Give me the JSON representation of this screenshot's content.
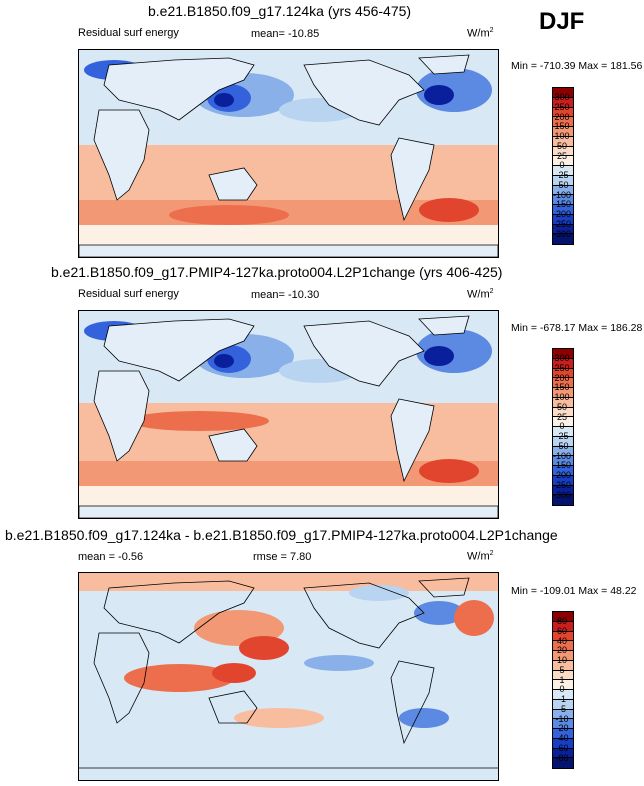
{
  "season": "DJF",
  "panels": [
    {
      "title": "b.e21.B1850.f09_g17.124ka (yrs 456-475)",
      "variable": "Residual surf energy",
      "stat": "mean= -10.85",
      "units_base": "W/m",
      "units_exp": "2",
      "minmax": "Min = -710.39 Max = 181.56",
      "levels": [
        "300",
        "250",
        "200",
        "150",
        "100",
        "50",
        "25",
        "0",
        "-25",
        "-50",
        "-100",
        "-150",
        "-200",
        "-250",
        "-300"
      ],
      "colors": [
        "#8c0000",
        "#c81e1e",
        "#e2452d",
        "#ec6e4c",
        "#f39874",
        "#f7bd9e",
        "#fbdcc6",
        "#fdf1e6",
        "#d8e8f5",
        "#b8d4f0",
        "#89b0e8",
        "#5c8ae2",
        "#3462dc",
        "#183ec6",
        "#0a1f9c",
        "#04146e"
      ]
    },
    {
      "title": "b.e21.B1850.f09_g17.PMIP4-127ka.proto004.L2P1change (yrs 406-425)",
      "variable": "Residual surf energy",
      "stat": "mean= -10.30",
      "units_base": "W/m",
      "units_exp": "2",
      "minmax": "Min = -678.17 Max = 186.28",
      "levels": [
        "300",
        "250",
        "200",
        "150",
        "100",
        "50",
        "25",
        "0",
        "-25",
        "-50",
        "-100",
        "-150",
        "-200",
        "-250",
        "-300"
      ],
      "colors": [
        "#8c0000",
        "#c81e1e",
        "#e2452d",
        "#ec6e4c",
        "#f39874",
        "#f7bd9e",
        "#fbdcc6",
        "#fdf1e6",
        "#d8e8f5",
        "#b8d4f0",
        "#89b0e8",
        "#5c8ae2",
        "#3462dc",
        "#183ec6",
        "#0a1f9c",
        "#04146e"
      ]
    },
    {
      "title": "b.e21.B1850.f09_g17.124ka - b.e21.B1850.f09_g17.PMIP4-127ka.proto004.L2P1change",
      "variable": "mean = -0.56",
      "stat": "rmse = 7.80",
      "units_base": "W/m",
      "units_exp": "2",
      "minmax": "Min = -109.01 Max = 48.22",
      "levels": [
        "80",
        "60",
        "40",
        "20",
        "10",
        "5",
        "1",
        "0",
        "-1",
        "-5",
        "-10",
        "-20",
        "-40",
        "-60",
        "-80"
      ],
      "colors": [
        "#8c0000",
        "#c81e1e",
        "#e2452d",
        "#ec6e4c",
        "#f39874",
        "#f7bd9e",
        "#fbdcc6",
        "#fdf1e6",
        "#d8e8f5",
        "#b8d4f0",
        "#89b0e8",
        "#5c8ae2",
        "#3462dc",
        "#183ec6",
        "#0a1f9c",
        "#04146e"
      ]
    }
  ]
}
